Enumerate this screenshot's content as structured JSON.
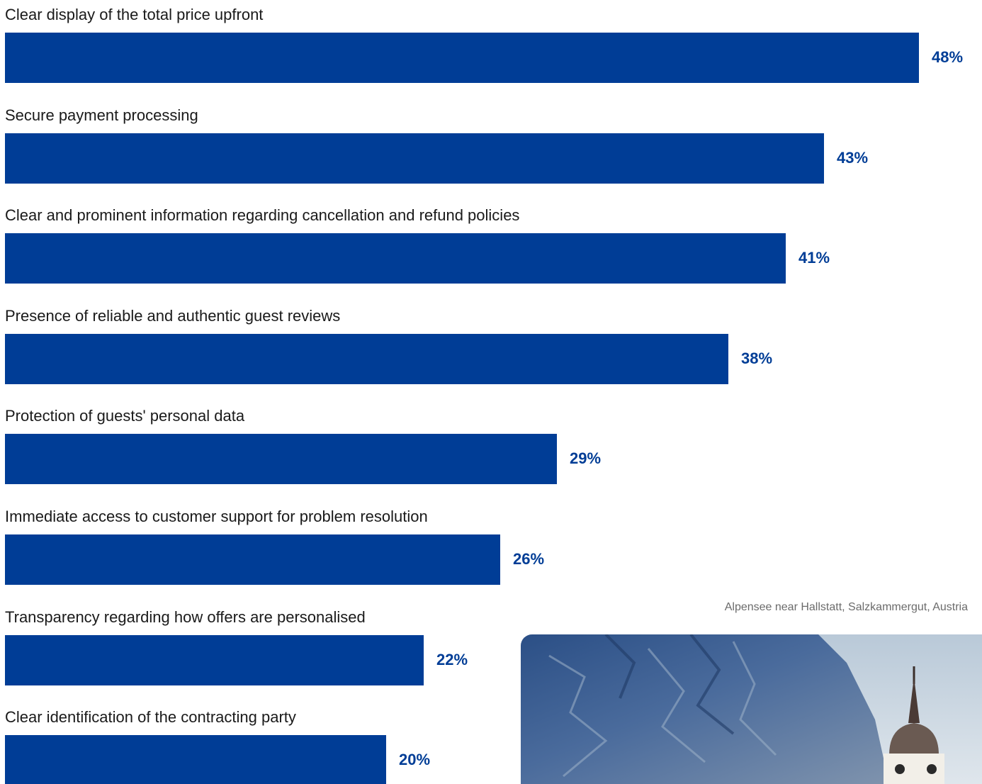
{
  "chart_data": {
    "type": "bar",
    "orientation": "horizontal",
    "categories": [
      "Clear display of the total price upfront",
      "Secure payment processing",
      "Clear and prominent information regarding cancellation and refund policies",
      "Presence of reliable and authentic guest reviews",
      "Protection of guests' personal data",
      "Immediate access to customer support for problem resolution",
      "Transparency regarding how offers are personalised",
      "Clear identification of the contracting party"
    ],
    "values": [
      48,
      43,
      41,
      38,
      29,
      26,
      22,
      20
    ],
    "value_labels": [
      "48%",
      "43%",
      "41%",
      "38%",
      "29%",
      "26%",
      "22%",
      "20%"
    ],
    "unit": "%",
    "bar_color": "#003d96",
    "grid": false,
    "legend": "none"
  },
  "photo": {
    "caption": "Alpensee near Hallstatt, Salzkammergut, Austria",
    "subject": "alpine-mountain-with-church-tower-photo"
  }
}
